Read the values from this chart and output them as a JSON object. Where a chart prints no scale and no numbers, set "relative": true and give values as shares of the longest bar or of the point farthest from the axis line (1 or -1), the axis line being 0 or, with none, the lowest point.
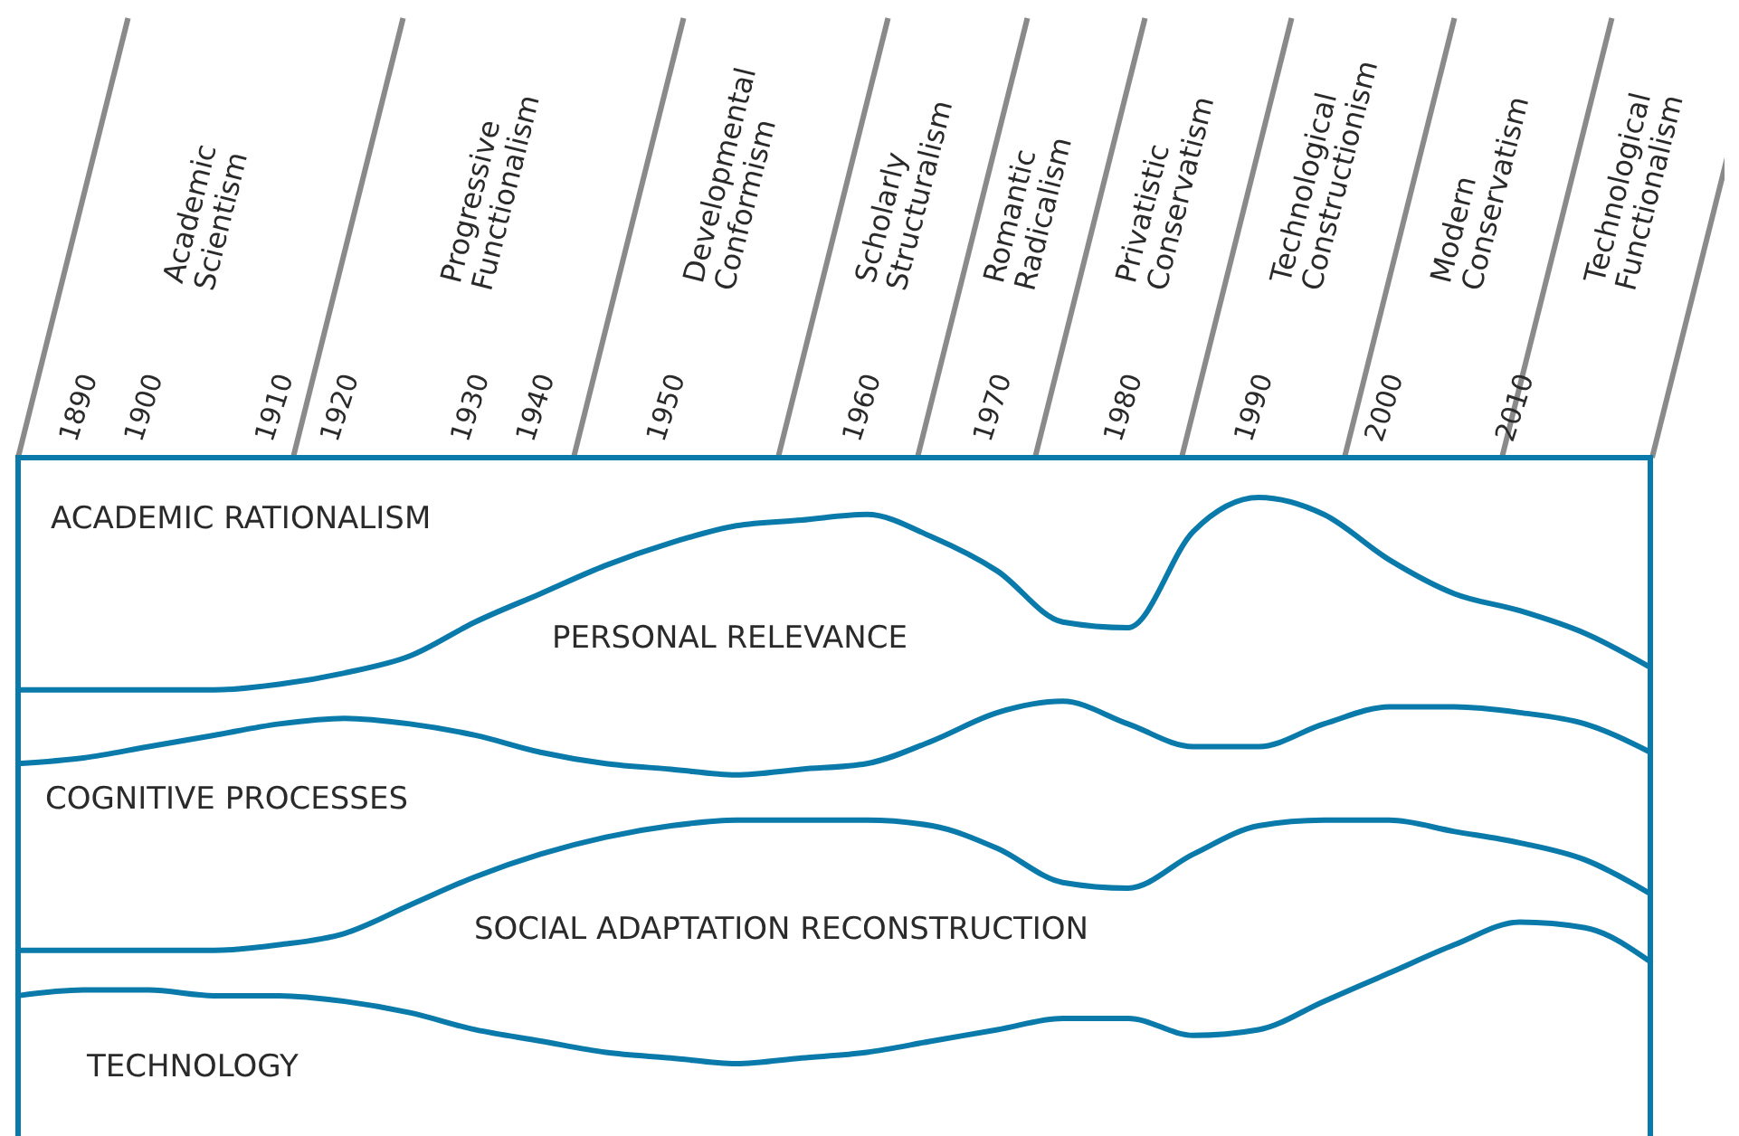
{
  "chart_data": {
    "type": "line",
    "relative": true,
    "tick_labels": "x",
    "categories": [
      null,
      "1890",
      "1900",
      null,
      "1910",
      "1920",
      null,
      "1930",
      "1940",
      null,
      "1950",
      null,
      null,
      "1960",
      null,
      "1970",
      null,
      "1980",
      null,
      "1990",
      null,
      "2000",
      null,
      "2010",
      null,
      null
    ],
    "series": [
      {
        "color": "#0a7aab",
        "values": [
          0.66,
          0.66,
          0.66,
          0.66,
          0.67,
          0.69,
          0.72,
          0.78,
          0.83,
          0.88,
          0.92,
          0.95,
          0.96,
          0.97,
          0.93,
          0.87,
          0.78,
          0.77,
          0.94,
          1.0,
          0.97,
          0.89,
          0.83,
          0.8,
          0.76,
          0.7
        ]
      },
      {
        "color": "#0a7aab",
        "values": [
          0.53,
          0.54,
          0.56,
          0.58,
          0.6,
          0.61,
          0.6,
          0.58,
          0.55,
          0.53,
          0.52,
          0.51,
          0.52,
          0.53,
          0.57,
          0.62,
          0.64,
          0.6,
          0.56,
          0.56,
          0.6,
          0.63,
          0.63,
          0.62,
          0.6,
          0.55
        ]
      },
      {
        "color": "#0a7aab",
        "values": [
          0.2,
          0.2,
          0.2,
          0.2,
          0.21,
          0.23,
          0.28,
          0.33,
          0.37,
          0.4,
          0.42,
          0.43,
          0.43,
          0.43,
          0.42,
          0.38,
          0.32,
          0.31,
          0.37,
          0.42,
          0.43,
          0.43,
          0.41,
          0.39,
          0.36,
          0.3
        ]
      },
      {
        "color": "#0a7aab",
        "values": [
          0.12,
          0.13,
          0.13,
          0.12,
          0.12,
          0.11,
          0.09,
          0.06,
          0.04,
          0.02,
          0.01,
          0,
          0.01,
          0.02,
          0.04,
          0.06,
          0.08,
          0.08,
          0.05,
          0.06,
          0.11,
          0.16,
          0.21,
          0.25,
          0.24,
          0.18
        ]
      }
    ],
    "annotations": [
      "Academic Scientism",
      "Progressive Functionalism",
      "Developmental Conformism",
      "Scholarly Structuralism",
      "Romantic Radicalism",
      "Privatistic Conservatism",
      "Technological Constructionism",
      "Modern Conservatism",
      "Technological Functionalism",
      "ACADEMIC RATIONALISM",
      "PERSONAL RELEVANCE",
      "COGNITIVE PROCESSES",
      "SOCIAL ADAPTATION RECONSTRUCTION",
      "TECHNOLOGY"
    ]
  }
}
